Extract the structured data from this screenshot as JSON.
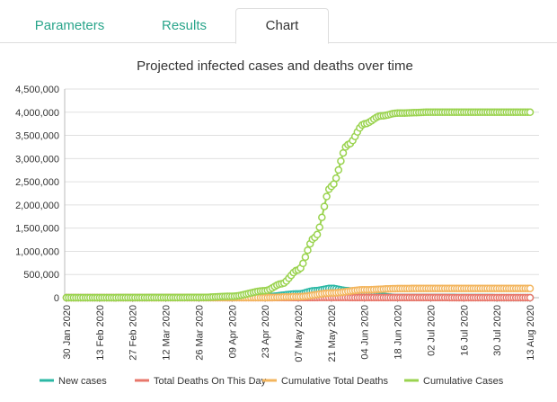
{
  "tabs": [
    {
      "label": "Parameters",
      "active": false
    },
    {
      "label": "Results",
      "active": false
    },
    {
      "label": "Chart",
      "active": true
    }
  ],
  "colors": {
    "tab_text": "#2aa58b",
    "new_cases": "#2bb8a5",
    "total_deaths_day": "#e8776b",
    "cumulative_deaths": "#f3b55d",
    "cumulative_cases": "#9ad34f"
  },
  "chart_data": {
    "type": "line",
    "title": "Projected infected cases and deaths over time",
    "xlabel": "",
    "ylabel": "",
    "ylim": [
      0,
      4500000
    ],
    "yticks": [
      "4,500,000",
      "4,000,000",
      "3,500,000",
      "3,000,000",
      "2,500,000",
      "2,000,000",
      "1,500,000",
      "1,000,000",
      "500,000",
      "0"
    ],
    "xticks": [
      "30 Jan 2020",
      "13 Feb 2020",
      "27 Feb 2020",
      "12 Mar 2020",
      "26 Mar 2020",
      "09 Apr 2020",
      "23 Apr 2020",
      "07 May 2020",
      "21 May 2020",
      "04 Jun 2020",
      "18 Jun 2020",
      "02 Jul 2020",
      "16 Jul 2020",
      "30 Jul 2020",
      "13 Aug 2020"
    ],
    "grid": true,
    "legend_position": "bottom",
    "series": [
      {
        "name": "New cases",
        "color": "#2bb8a5",
        "points": [
          [
            "30 Jan 2020",
            0
          ],
          [
            "09 Apr 2020",
            2000
          ],
          [
            "23 Apr 2020",
            20000
          ],
          [
            "07 May 2020",
            80000
          ],
          [
            "14 May 2020",
            150000
          ],
          [
            "21 May 2020",
            200000
          ],
          [
            "28 May 2020",
            150000
          ],
          [
            "04 Jun 2020",
            60000
          ],
          [
            "18 Jun 2020",
            5000
          ],
          [
            "13 Aug 2020",
            0
          ]
        ]
      },
      {
        "name": "Total Deaths On This Day",
        "color": "#e8776b",
        "points": [
          [
            "30 Jan 2020",
            0
          ],
          [
            "07 May 2020",
            1000
          ],
          [
            "21 May 2020",
            4000
          ],
          [
            "04 Jun 2020",
            2000
          ],
          [
            "13 Aug 2020",
            0
          ]
        ]
      },
      {
        "name": "Cumulative Total Deaths",
        "color": "#f3b55d",
        "points": [
          [
            "30 Jan 2020",
            0
          ],
          [
            "23 Apr 2020",
            2000
          ],
          [
            "07 May 2020",
            20000
          ],
          [
            "21 May 2020",
            100000
          ],
          [
            "04 Jun 2020",
            170000
          ],
          [
            "18 Jun 2020",
            195000
          ],
          [
            "02 Jul 2020",
            200000
          ],
          [
            "13 Aug 2020",
            200000
          ]
        ]
      },
      {
        "name": "Cumulative Cases",
        "color": "#9ad34f",
        "points": [
          [
            "30 Jan 2020",
            0
          ],
          [
            "26 Mar 2020",
            3000
          ],
          [
            "09 Apr 2020",
            30000
          ],
          [
            "23 Apr 2020",
            150000
          ],
          [
            "30 Apr 2020",
            300000
          ],
          [
            "07 May 2020",
            600000
          ],
          [
            "14 May 2020",
            1300000
          ],
          [
            "21 May 2020",
            2400000
          ],
          [
            "28 May 2020",
            3300000
          ],
          [
            "04 Jun 2020",
            3750000
          ],
          [
            "11 Jun 2020",
            3920000
          ],
          [
            "18 Jun 2020",
            3980000
          ],
          [
            "02 Jul 2020",
            4000000
          ],
          [
            "13 Aug 2020",
            4000000
          ]
        ]
      }
    ]
  }
}
